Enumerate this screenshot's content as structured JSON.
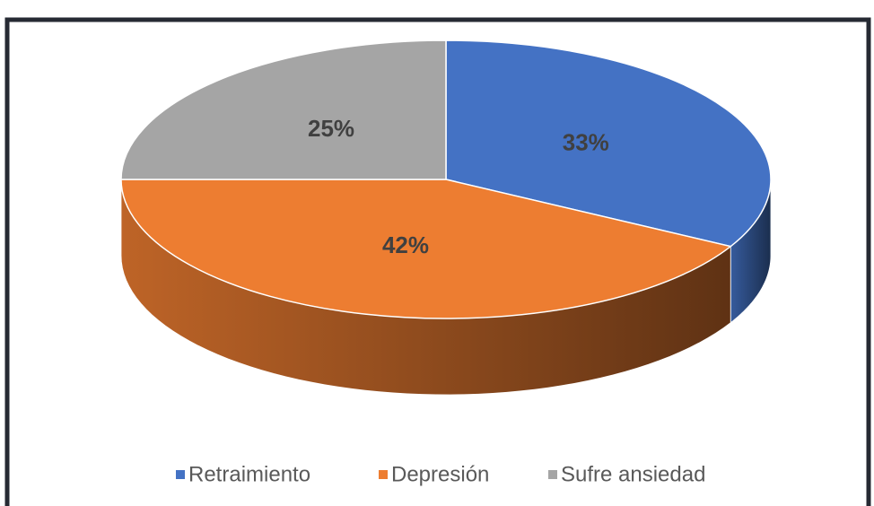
{
  "chart_data": {
    "type": "pie",
    "categories": [
      "Retraimiento",
      "Depresión",
      "Sufre ansiedad"
    ],
    "values": [
      33,
      42,
      25
    ],
    "value_labels": [
      "33%",
      "42%",
      "25%"
    ],
    "colors": [
      "#4472c4",
      "#ed7d31",
      "#a5a5a5"
    ],
    "legend": "bottom"
  }
}
